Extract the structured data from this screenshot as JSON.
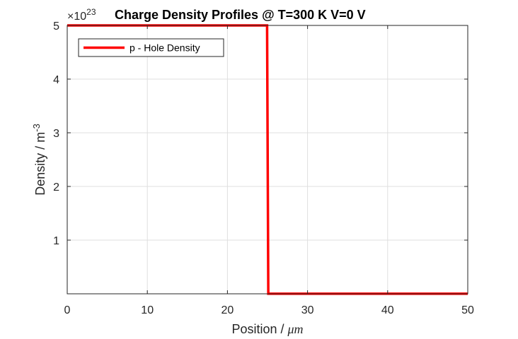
{
  "chart_data": {
    "type": "line",
    "title": "Charge Density Profiles @ T=300 K V=0 V",
    "xlabel_main": "Position / ",
    "xlabel_unit": "μm",
    "ylabel_main": "Density / m",
    "ylabel_exp": "-3",
    "y_multiplier_base": "×10",
    "y_multiplier_exp": "23",
    "xlim": [
      0,
      50
    ],
    "ylim": [
      0,
      5
    ],
    "xticks": [
      0,
      10,
      20,
      30,
      40,
      50
    ],
    "xtick_labels": [
      "0",
      "10",
      "20",
      "30",
      "40",
      "50"
    ],
    "yticks": [
      1,
      2,
      3,
      4,
      5
    ],
    "ytick_labels": [
      "1",
      "2",
      "3",
      "4",
      "5"
    ],
    "grid": true,
    "legend_position": "top-left",
    "series": [
      {
        "name": "p - Hole Density",
        "color": "#ff0000",
        "x": [
          0,
          24.95,
          25.1,
          50
        ],
        "y": [
          5,
          5,
          0.001,
          0.001
        ]
      }
    ]
  }
}
